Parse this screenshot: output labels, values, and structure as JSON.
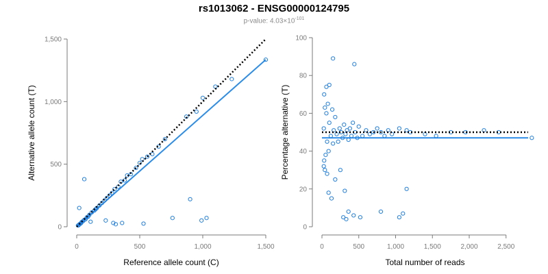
{
  "header": {
    "title": "rs1013062 - ENSG00000124795",
    "pvalue_prefix": "p-value: 4.03",
    "pvalue_times": "×",
    "pvalue_base": "10",
    "pvalue_exp": "-101"
  },
  "colors": {
    "point": "#1f7fe0",
    "fit_line": "#2a8ce8",
    "reference_line": "#000000",
    "axis": "#7a7a7a"
  },
  "chart_data": [
    {
      "type": "scatter",
      "xlabel": "Reference allele count (C)",
      "ylabel": "Alternative allele count (T)",
      "xlim": [
        0,
        1500
      ],
      "ylim": [
        0,
        1500
      ],
      "xticks": [
        0,
        500,
        1000,
        1500
      ],
      "xtick_labels": [
        "0",
        "500",
        "1,000",
        "1,500"
      ],
      "yticks": [
        0,
        500,
        1000,
        1500
      ],
      "ytick_labels": [
        "0",
        "500",
        "1,000",
        "1,500"
      ],
      "reference_line": {
        "style": "dotted",
        "from": [
          0,
          0
        ],
        "to": [
          1500,
          1500
        ]
      },
      "fit_line": {
        "style": "solid",
        "from": [
          0,
          0
        ],
        "to": [
          1500,
          1335
        ]
      },
      "points": [
        [
          1500,
          1335
        ],
        [
          1230,
          1180
        ],
        [
          1100,
          1120
        ],
        [
          1000,
          1030
        ],
        [
          950,
          920
        ],
        [
          870,
          880
        ],
        [
          700,
          700
        ],
        [
          650,
          640
        ],
        [
          600,
          580
        ],
        [
          560,
          560
        ],
        [
          520,
          540
        ],
        [
          500,
          510
        ],
        [
          470,
          470
        ],
        [
          430,
          420
        ],
        [
          400,
          410
        ],
        [
          380,
          370
        ],
        [
          350,
          360
        ],
        [
          330,
          320
        ],
        [
          300,
          300
        ],
        [
          280,
          270
        ],
        [
          260,
          250
        ],
        [
          240,
          230
        ],
        [
          220,
          210
        ],
        [
          200,
          190
        ],
        [
          180,
          170
        ],
        [
          160,
          150
        ],
        [
          150,
          140
        ],
        [
          140,
          130
        ],
        [
          120,
          115
        ],
        [
          100,
          95
        ],
        [
          90,
          80
        ],
        [
          80,
          75
        ],
        [
          70,
          60
        ],
        [
          60,
          55
        ],
        [
          50,
          45
        ],
        [
          40,
          38
        ],
        [
          35,
          30
        ],
        [
          30,
          25
        ],
        [
          25,
          22
        ],
        [
          20,
          18
        ],
        [
          15,
          12
        ],
        [
          10,
          10
        ],
        [
          60,
          380
        ],
        [
          20,
          150
        ],
        [
          900,
          220
        ],
        [
          760,
          70
        ],
        [
          1030,
          70
        ],
        [
          990,
          50
        ],
        [
          530,
          25
        ],
        [
          360,
          30
        ],
        [
          290,
          30
        ],
        [
          230,
          50
        ],
        [
          310,
          20
        ],
        [
          110,
          40
        ]
      ]
    },
    {
      "type": "scatter",
      "xlabel": "Total number of reads",
      "ylabel": "Percentage alternative (T)",
      "xlim": [
        0,
        2800
      ],
      "ylim": [
        0,
        100
      ],
      "xticks": [
        0,
        500,
        1000,
        1500,
        2000,
        2500
      ],
      "xtick_labels": [
        "0",
        "500",
        "1,000",
        "1,500",
        "2,000",
        "2,500"
      ],
      "yticks": [
        0,
        20,
        40,
        60,
        80,
        100
      ],
      "ytick_labels": [
        "0",
        "20",
        "40",
        "60",
        "80",
        "100"
      ],
      "reference_line": {
        "style": "dotted",
        "y": 50
      },
      "fit_line": {
        "style": "solid",
        "y": 47
      },
      "points": [
        [
          2850,
          47
        ],
        [
          2400,
          50
        ],
        [
          2200,
          51
        ],
        [
          1950,
          50
        ],
        [
          1750,
          50
        ],
        [
          1550,
          48
        ],
        [
          1400,
          49
        ],
        [
          1200,
          50
        ],
        [
          1150,
          51
        ],
        [
          1050,
          52
        ],
        [
          950,
          49
        ],
        [
          900,
          51
        ],
        [
          850,
          48
        ],
        [
          800,
          50
        ],
        [
          750,
          52
        ],
        [
          700,
          50
        ],
        [
          650,
          49
        ],
        [
          600,
          51
        ],
        [
          550,
          48
        ],
        [
          500,
          53
        ],
        [
          480,
          47
        ],
        [
          450,
          50
        ],
        [
          420,
          55
        ],
        [
          400,
          48
        ],
        [
          380,
          52
        ],
        [
          360,
          46
        ],
        [
          340,
          51
        ],
        [
          320,
          49
        ],
        [
          300,
          54
        ],
        [
          280,
          47
        ],
        [
          260,
          50
        ],
        [
          240,
          52
        ],
        [
          220,
          45
        ],
        [
          200,
          49
        ],
        [
          180,
          58
        ],
        [
          160,
          51
        ],
        [
          150,
          44
        ],
        [
          140,
          62
        ],
        [
          120,
          48
        ],
        [
          100,
          55
        ],
        [
          90,
          40
        ],
        [
          80,
          65
        ],
        [
          70,
          45
        ],
        [
          60,
          60
        ],
        [
          50,
          38
        ],
        [
          40,
          63
        ],
        [
          30,
          35
        ],
        [
          25,
          52
        ],
        [
          150,
          89
        ],
        [
          440,
          86
        ],
        [
          100,
          75
        ],
        [
          60,
          74
        ],
        [
          30,
          70
        ],
        [
          1100,
          7
        ],
        [
          1150,
          20
        ],
        [
          1050,
          5
        ],
        [
          800,
          8
        ],
        [
          520,
          5
        ],
        [
          430,
          6
        ],
        [
          360,
          8
        ],
        [
          330,
          4
        ],
        [
          290,
          5
        ],
        [
          310,
          19
        ],
        [
          250,
          30
        ],
        [
          180,
          25
        ],
        [
          130,
          15
        ],
        [
          90,
          18
        ],
        [
          40,
          30
        ],
        [
          25,
          32
        ],
        [
          70,
          28
        ]
      ]
    }
  ]
}
